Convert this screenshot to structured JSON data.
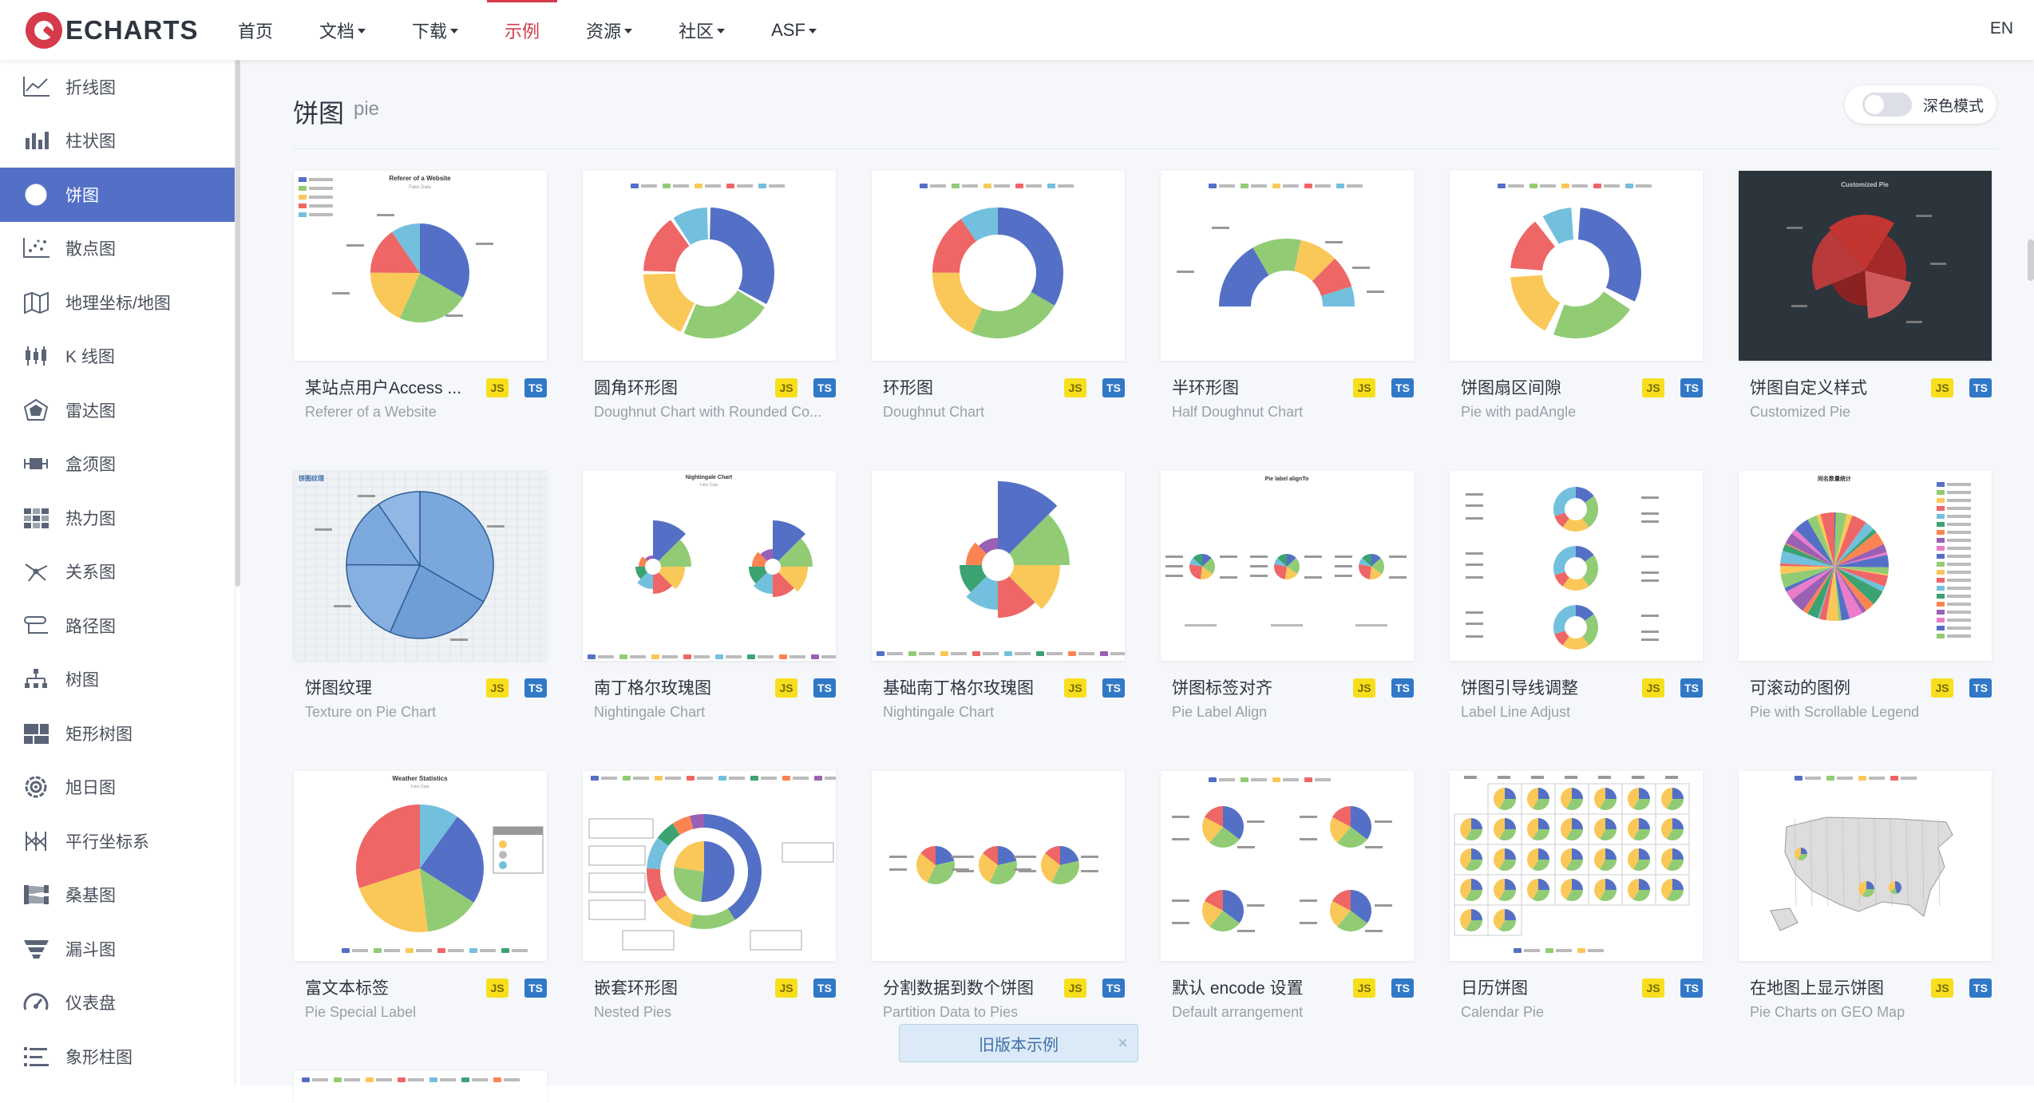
{
  "brand": {
    "name": "ECHARTS"
  },
  "nav": {
    "items": [
      {
        "label": "首页",
        "caret": false,
        "active": false
      },
      {
        "label": "文档",
        "caret": true,
        "active": false
      },
      {
        "label": "下载",
        "caret": true,
        "active": false
      },
      {
        "label": "示例",
        "caret": false,
        "active": true
      },
      {
        "label": "资源",
        "caret": true,
        "active": false
      },
      {
        "label": "社区",
        "caret": true,
        "active": false
      },
      {
        "label": "ASF",
        "caret": true,
        "active": false
      }
    ],
    "lang": "EN"
  },
  "sidebar": {
    "items": [
      {
        "label": "折线图",
        "icon": "line-chart-icon"
      },
      {
        "label": "柱状图",
        "icon": "bar-chart-icon"
      },
      {
        "label": "饼图",
        "icon": "pie-chart-icon",
        "active": true
      },
      {
        "label": "散点图",
        "icon": "scatter-icon"
      },
      {
        "label": "地理坐标/地图",
        "icon": "map-icon"
      },
      {
        "label": "K 线图",
        "icon": "candlestick-icon"
      },
      {
        "label": "雷达图",
        "icon": "radar-icon"
      },
      {
        "label": "盒须图",
        "icon": "boxplot-icon"
      },
      {
        "label": "热力图",
        "icon": "heatmap-icon"
      },
      {
        "label": "关系图",
        "icon": "graph-icon"
      },
      {
        "label": "路径图",
        "icon": "lines-icon"
      },
      {
        "label": "树图",
        "icon": "tree-icon"
      },
      {
        "label": "矩形树图",
        "icon": "treemap-icon"
      },
      {
        "label": "旭日图",
        "icon": "sunburst-icon"
      },
      {
        "label": "平行坐标系",
        "icon": "parallel-icon"
      },
      {
        "label": "桑基图",
        "icon": "sankey-icon"
      },
      {
        "label": "漏斗图",
        "icon": "funnel-icon"
      },
      {
        "label": "仪表盘",
        "icon": "gauge-icon"
      },
      {
        "label": "象形柱图",
        "icon": "pictorial-bar-icon"
      }
    ]
  },
  "page": {
    "title": "饼图",
    "subtitle": "pie",
    "dark_mode_label": "深色模式"
  },
  "badges": {
    "js": "JS",
    "ts": "TS"
  },
  "colors": {
    "palette": [
      "#5470c6",
      "#91cc75",
      "#fac858",
      "#ee6666",
      "#73c0de",
      "#3ba272",
      "#fc8452",
      "#9a60b4",
      "#ea7ccc"
    ],
    "accent": "#d63a4b",
    "sidebar_active": "#5470c6"
  },
  "examples": [
    {
      "title": "某站点用户Access ...",
      "subtitle": "Referer of a Website",
      "thumb": "pie-basic",
      "thumb_title": "Referer of a Website",
      "thumb_subtitle": "Fake Data"
    },
    {
      "title": "圆角环形图",
      "subtitle": "Doughnut Chart with Rounded Co...",
      "thumb": "doughnut-rounded"
    },
    {
      "title": "环形图",
      "subtitle": "Doughnut Chart",
      "thumb": "doughnut"
    },
    {
      "title": "半环形图",
      "subtitle": "Half Doughnut Chart",
      "thumb": "half-doughnut"
    },
    {
      "title": "饼图扇区间隙",
      "subtitle": "Pie with padAngle",
      "thumb": "pad-angle"
    },
    {
      "title": "饼图自定义样式",
      "subtitle": "Customized Pie",
      "thumb": "custom-dark",
      "thumb_title": "Customized Pie"
    },
    {
      "title": "饼图纹理",
      "subtitle": "Texture on Pie Chart",
      "thumb": "texture",
      "thumb_title": "饼图纹理"
    },
    {
      "title": "南丁格尔玫瑰图",
      "subtitle": "Nightingale Chart",
      "thumb": "nightingale-double",
      "thumb_title": "Nightingale Chart",
      "thumb_subtitle": "Fake Data"
    },
    {
      "title": "基础南丁格尔玫瑰图",
      "subtitle": "Nightingale Chart",
      "thumb": "nightingale-basic"
    },
    {
      "title": "饼图标签对齐",
      "subtitle": "Pie Label Align",
      "thumb": "label-align",
      "thumb_title": "Pie label alignTo"
    },
    {
      "title": "饼图引导线调整",
      "subtitle": "Label Line Adjust",
      "thumb": "label-line"
    },
    {
      "title": "可滚动的图例",
      "subtitle": "Pie with Scrollable Legend",
      "thumb": "scroll-legend",
      "thumb_title": "同名数量统计"
    },
    {
      "title": "富文本标签",
      "subtitle": "Pie Special Label",
      "thumb": "rich-label",
      "thumb_title": "Weather Statistics",
      "thumb_subtitle": "Fake Data"
    },
    {
      "title": "嵌套环形图",
      "subtitle": "Nested Pies",
      "thumb": "nested"
    },
    {
      "title": "分割数据到数个饼图",
      "subtitle": "Partition Data to Pies",
      "thumb": "partition"
    },
    {
      "title": "默认 encode 设置",
      "subtitle": "Default arrangement",
      "thumb": "encode"
    },
    {
      "title": "日历饼图",
      "subtitle": "Calendar Pie",
      "thumb": "calendar"
    },
    {
      "title": "在地图上显示饼图",
      "subtitle": "Pie Charts on GEO Map",
      "thumb": "geo-map"
    }
  ],
  "legacy": {
    "label": "旧版本示例",
    "close": "×"
  }
}
